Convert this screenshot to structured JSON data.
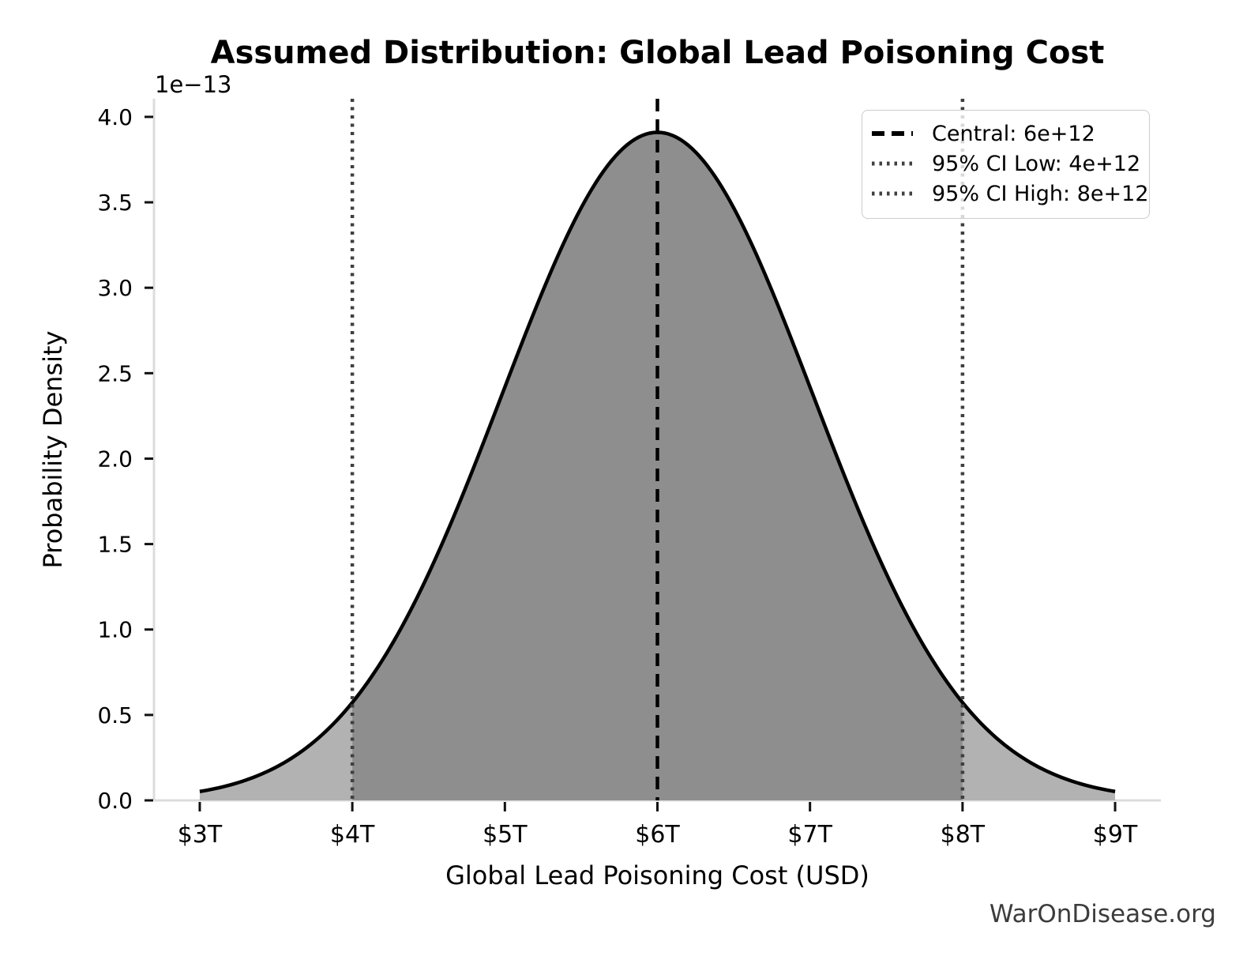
{
  "page": {
    "background": "#ffffff",
    "watermark": "WarOnDisease.org"
  },
  "chart_data": {
    "type": "area",
    "title": "Assumed Distribution: Global Lead Poisoning Cost",
    "xlabel": "Global Lead Poisoning Cost (USD)",
    "ylabel": "Probability Density",
    "y_axis_offset_label": "1e−13",
    "distribution": {
      "kind": "normal",
      "central": 6000000000000.0,
      "ci_level": "95%",
      "ci_low": 4000000000000.0,
      "ci_high": 8000000000000.0,
      "sigma": 1020408163265.3062,
      "peak_density": 3.91e-13
    },
    "curve_x_range": [
      3000000000000.0,
      9000000000000.0
    ],
    "xlim": [
      2700000000000.0,
      9300000000000.0
    ],
    "ylim": [
      0,
      4.106e-13
    ],
    "xticks": [
      {
        "value": 3000000000000.0,
        "label": "$3T"
      },
      {
        "value": 4000000000000.0,
        "label": "$4T"
      },
      {
        "value": 5000000000000.0,
        "label": "$5T"
      },
      {
        "value": 6000000000000.0,
        "label": "$6T"
      },
      {
        "value": 7000000000000.0,
        "label": "$7T"
      },
      {
        "value": 8000000000000.0,
        "label": "$8T"
      },
      {
        "value": 9000000000000.0,
        "label": "$9T"
      }
    ],
    "yticks": [
      {
        "value": 0,
        "label": "0.0"
      },
      {
        "value": 5e-14,
        "label": "0.5"
      },
      {
        "value": 1e-13,
        "label": "1.0"
      },
      {
        "value": 1.5e-13,
        "label": "1.5"
      },
      {
        "value": 2e-13,
        "label": "2.0"
      },
      {
        "value": 2.5e-13,
        "label": "2.5"
      },
      {
        "value": 3e-13,
        "label": "3.0"
      },
      {
        "value": 3.5e-13,
        "label": "3.5"
      },
      {
        "value": 4e-13,
        "label": "4.0"
      }
    ],
    "legend": {
      "position": "upper right",
      "entries": [
        {
          "label": "Central: 6e+12",
          "line_style": "dashed",
          "color": "#000000"
        },
        {
          "label": "95% CI Low: 4e+12",
          "line_style": "dotted",
          "color": "#3f3f3f"
        },
        {
          "label": "95% CI High: 8e+12",
          "line_style": "dotted",
          "color": "#3f3f3f"
        }
      ]
    },
    "colors": {
      "curve": "#000000",
      "fill_tails": "#b2b2b2",
      "fill_ci": "#8e8e8e",
      "central_line": "#000000",
      "ci_lines": "#3f3f3f",
      "axis_spine": "#dcdcdc",
      "tick_marks": "#111111",
      "tick_labels": "#000000",
      "watermark": "#3c3c3c"
    },
    "grid": false
  }
}
